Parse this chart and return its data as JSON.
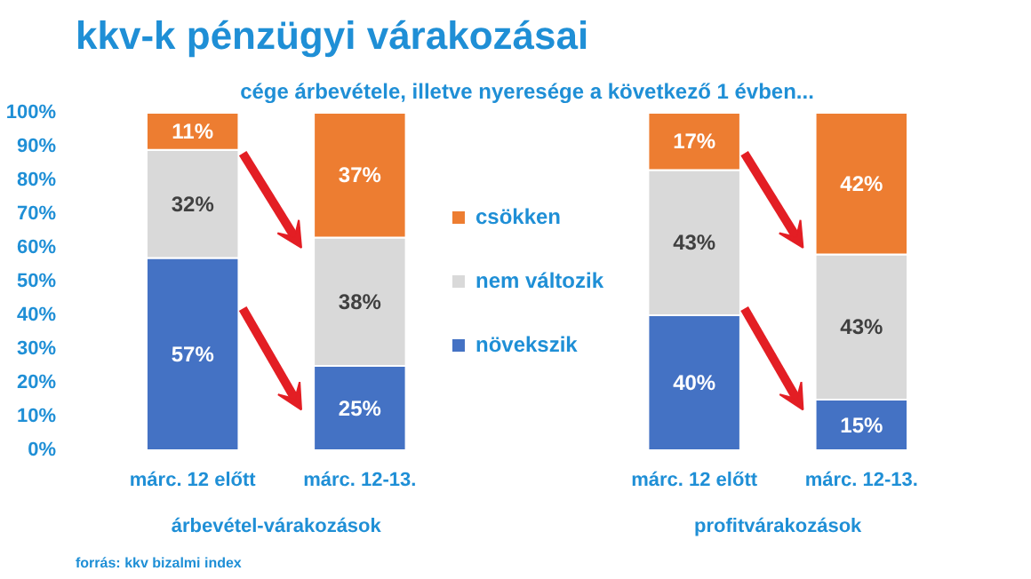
{
  "chart_data": {
    "type": "bar",
    "stacked": true,
    "title": "kkv-k pénzügyi várakozásai",
    "subtitle": "cége árbevétele, illetve nyeresége a következő 1 évben...",
    "categories": [
      "márc. 12 előtt",
      "márc. 12-13.",
      null,
      "márc. 12 előtt",
      "márc. 12-13."
    ],
    "series": [
      {
        "name": "növekszik",
        "color": "#4472c4",
        "values": [
          57,
          25,
          null,
          40,
          15
        ],
        "value_labels": [
          "57%",
          "25%",
          null,
          "40%",
          "15%"
        ]
      },
      {
        "name": "nem változik",
        "color": "#d9d9d9",
        "values": [
          32,
          38,
          null,
          43,
          43
        ],
        "value_labels": [
          "32%",
          "38%",
          null,
          "43%",
          "43%"
        ]
      },
      {
        "name": "csökken",
        "color": "#ed7d31",
        "values": [
          11,
          37,
          null,
          17,
          42
        ],
        "value_labels": [
          "11%",
          "37%",
          null,
          "17%",
          "42%"
        ]
      }
    ],
    "ylim": [
      0,
      100
    ],
    "yticks": [
      {
        "value": 0,
        "label": "0%"
      },
      {
        "value": 10,
        "label": "10%"
      },
      {
        "value": 20,
        "label": "20%"
      },
      {
        "value": 30,
        "label": "30%"
      },
      {
        "value": 40,
        "label": "40%"
      },
      {
        "value": 50,
        "label": "50%"
      },
      {
        "value": 60,
        "label": "60%"
      },
      {
        "value": 70,
        "label": "70%"
      },
      {
        "value": 80,
        "label": "80%"
      },
      {
        "value": 90,
        "label": "90%"
      },
      {
        "value": 100,
        "label": "100%"
      }
    ],
    "grid": false,
    "legend": "center",
    "annotations": [
      "árbevétel-várakozások",
      "profitvárakozások",
      "forrás: kkv bizalmi index"
    ]
  }
}
